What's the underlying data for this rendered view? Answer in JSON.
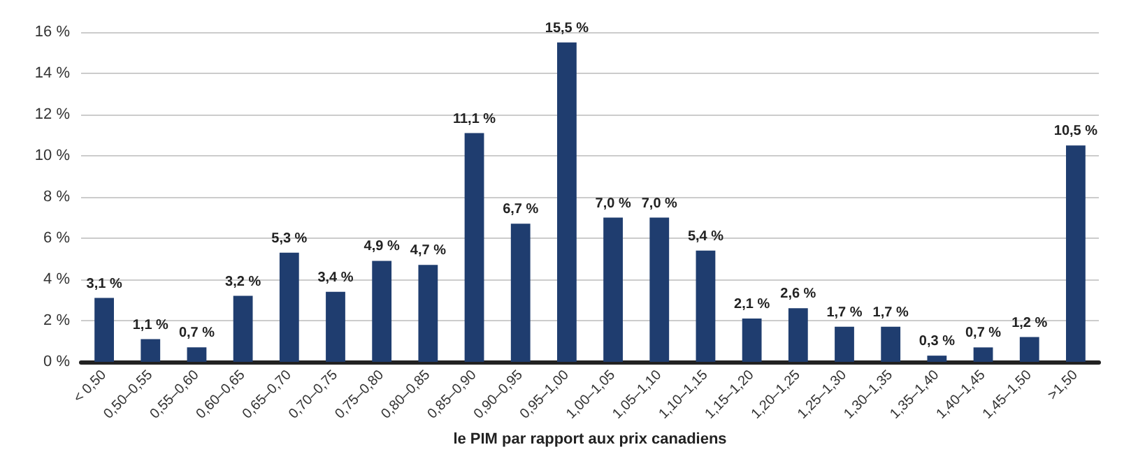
{
  "chart_data": {
    "type": "bar",
    "xlabel": "le PIM par rapport aux prix canadiens",
    "categories": [
      "< 0,50",
      "0,50–0,55",
      "0,55–0,60",
      "0,60–0,65",
      "0,65–0,70",
      "0,70–0,75",
      "0,75–0,80",
      "0,80–0,85",
      "0,85–0,90",
      "0,90–0,95",
      "0,95–1,00",
      "1,00–1,05",
      "1,05–1,10",
      "1,10–1,15",
      "1,15–1,20",
      "1,20–1,25",
      "1,25–1,30",
      "1,30–1,35",
      "1,35–1,40",
      "1,40–1,45",
      "1,45–1,50",
      ">1,50"
    ],
    "values": [
      3.1,
      1.1,
      0.7,
      3.2,
      5.3,
      3.4,
      4.9,
      4.7,
      11.1,
      6.7,
      15.5,
      7.0,
      7.0,
      5.4,
      2.1,
      2.6,
      1.7,
      1.7,
      0.3,
      0.7,
      1.2,
      10.5
    ],
    "value_labels": [
      "3,1 %",
      "1,1 %",
      "0,7 %",
      "3,2 %",
      "5,3 %",
      "3,4 %",
      "4,9 %",
      "4,7 %",
      "11,1 %",
      "6,7 %",
      "15,5 %",
      "7,0 %",
      "7,0 %",
      "5,4 %",
      "2,1 %",
      "2,6 %",
      "1,7 %",
      "1,7 %",
      "0,3 %",
      "0,7 %",
      "1,2 %",
      "10,5 %"
    ],
    "color": "#1f3d6f",
    "ylim": [
      0,
      16
    ],
    "yticks": [
      {
        "value": 0,
        "label": "0 %"
      },
      {
        "value": 2,
        "label": "2 %"
      },
      {
        "value": 4,
        "label": "4 %"
      },
      {
        "value": 6,
        "label": "6 %"
      },
      {
        "value": 8,
        "label": "8 %"
      },
      {
        "value": 10,
        "label": "10 %"
      },
      {
        "value": 12,
        "label": "12 %"
      },
      {
        "value": 14,
        "label": "14 %"
      },
      {
        "value": 16,
        "label": "16 %"
      }
    ],
    "grid": "y"
  }
}
